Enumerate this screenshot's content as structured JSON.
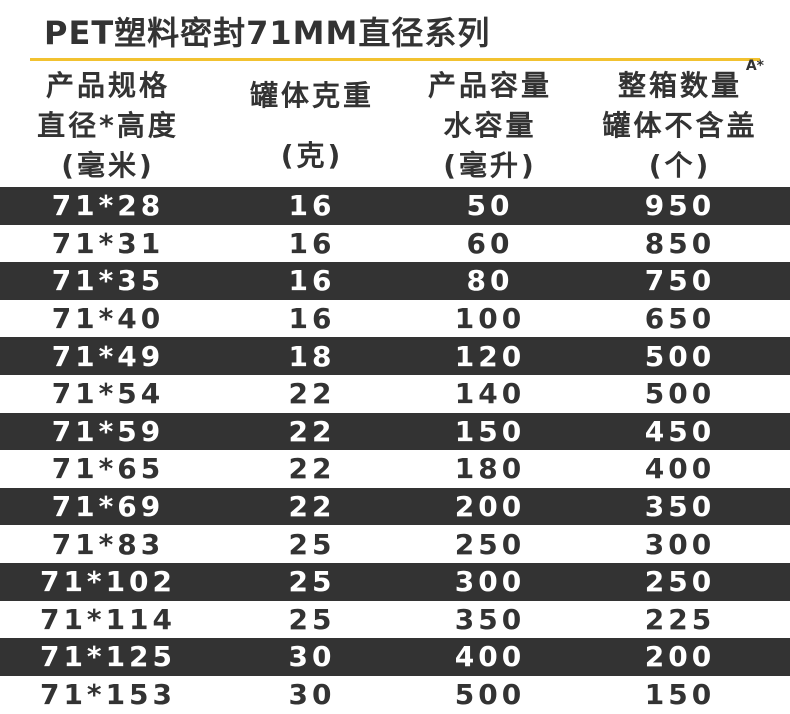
{
  "header": {
    "title": "PET塑料密封71MM直径系列"
  },
  "table": {
    "columns": [
      {
        "lines": [
          "产品规格",
          "直径*高度",
          "(毫米)"
        ]
      },
      {
        "lines": [
          "罐体克重",
          "(克)"
        ]
      },
      {
        "lines": [
          "产品容量",
          "水容量",
          "(毫升)"
        ]
      },
      {
        "lines": [
          "整箱数量",
          "罐体不含盖",
          "(个)"
        ],
        "superscript": "A*"
      }
    ],
    "rows": [
      [
        "71*28",
        "16",
        "50",
        "950"
      ],
      [
        "71*31",
        "16",
        "60",
        "850"
      ],
      [
        "71*35",
        "16",
        "80",
        "750"
      ],
      [
        "71*40",
        "16",
        "100",
        "650"
      ],
      [
        "71*49",
        "18",
        "120",
        "500"
      ],
      [
        "71*54",
        "22",
        "140",
        "500"
      ],
      [
        "71*59",
        "22",
        "150",
        "450"
      ],
      [
        "71*65",
        "22",
        "180",
        "400"
      ],
      [
        "71*69",
        "22",
        "200",
        "350"
      ],
      [
        "71*83",
        "25",
        "250",
        "300"
      ],
      [
        "71*102",
        "25",
        "300",
        "250"
      ],
      [
        "71*114",
        "25",
        "350",
        "225"
      ],
      [
        "71*125",
        "30",
        "400",
        "200"
      ],
      [
        "71*153",
        "30",
        "500",
        "150"
      ]
    ]
  }
}
